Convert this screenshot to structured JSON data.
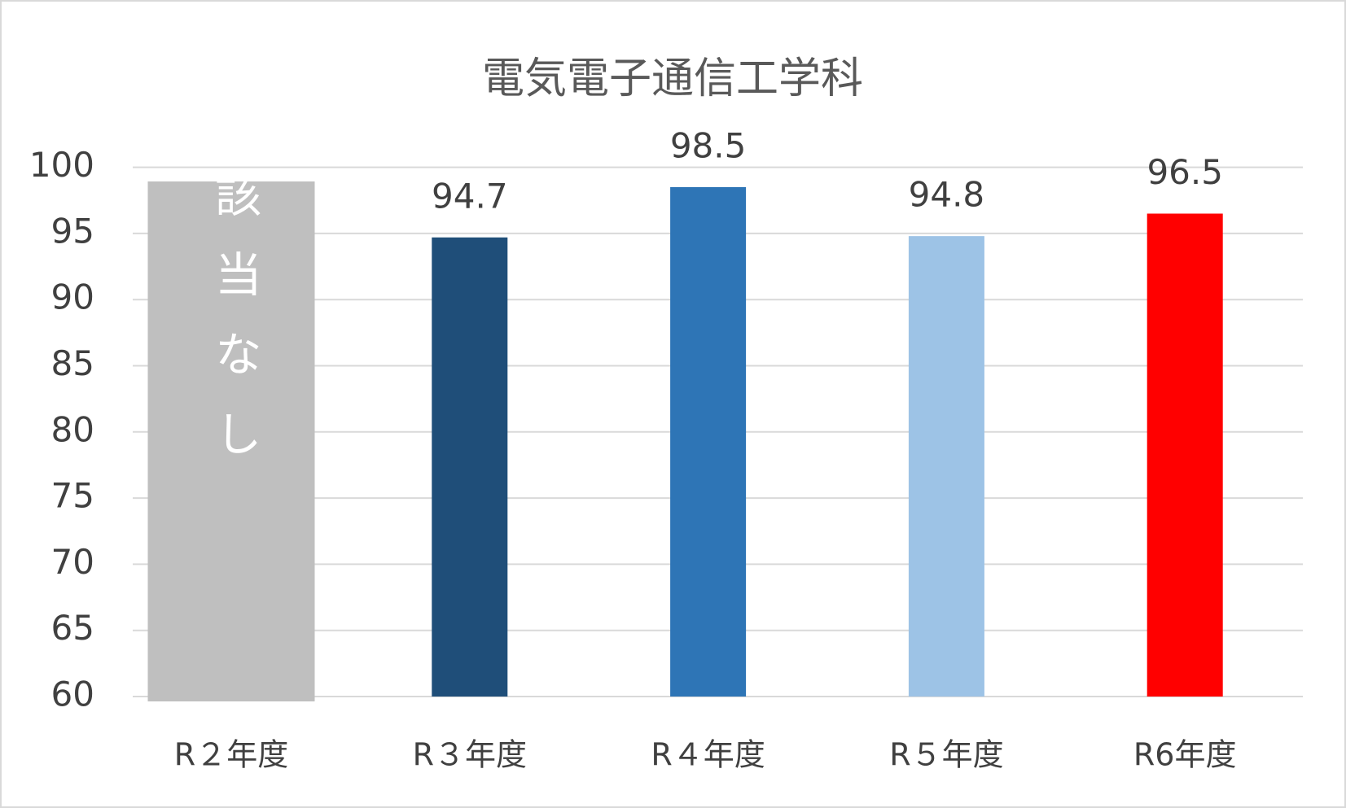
{
  "chart_data": {
    "type": "bar",
    "title": "電気電子通信工学科",
    "categories": [
      "R２年度",
      "R３年度",
      "R４年度",
      "R５年度",
      "R6年度"
    ],
    "series": [
      {
        "colors": [
          "#bfbfbf",
          "#1f4e79",
          "#2e75b6",
          "#9dc3e6",
          "#ff0000"
        ],
        "values": [
          null,
          94.7,
          98.5,
          94.8,
          96.5
        ]
      }
    ],
    "annotation": "該当なし",
    "ylim": [
      60,
      100
    ],
    "yticks": [
      60,
      65,
      70,
      75,
      80,
      85,
      90,
      95,
      100
    ],
    "grid": true
  }
}
